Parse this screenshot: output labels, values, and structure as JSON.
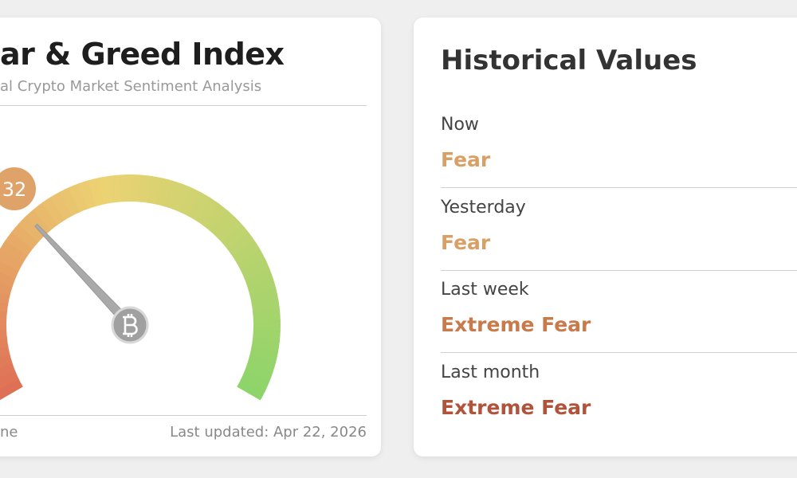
{
  "header": {
    "title": "ar & Greed Index",
    "subtitle": "al Crypto Market Sentiment Analysis"
  },
  "gauge": {
    "value": 32,
    "range": [
      0,
      100
    ]
  },
  "footer": {
    "left": "ne",
    "updated": "Last updated: Apr 22, 2026"
  },
  "history": {
    "title": "Historical Values",
    "rows": [
      {
        "label": "Now",
        "value": "Fear",
        "color": "#d9a066"
      },
      {
        "label": "Yesterday",
        "value": "Fear",
        "color": "#d9a066"
      },
      {
        "label": "Last week",
        "value": "Extreme Fear",
        "color": "#c97a4a"
      },
      {
        "label": "Last month",
        "value": "Extreme Fear",
        "color": "#b0533a"
      }
    ]
  }
}
